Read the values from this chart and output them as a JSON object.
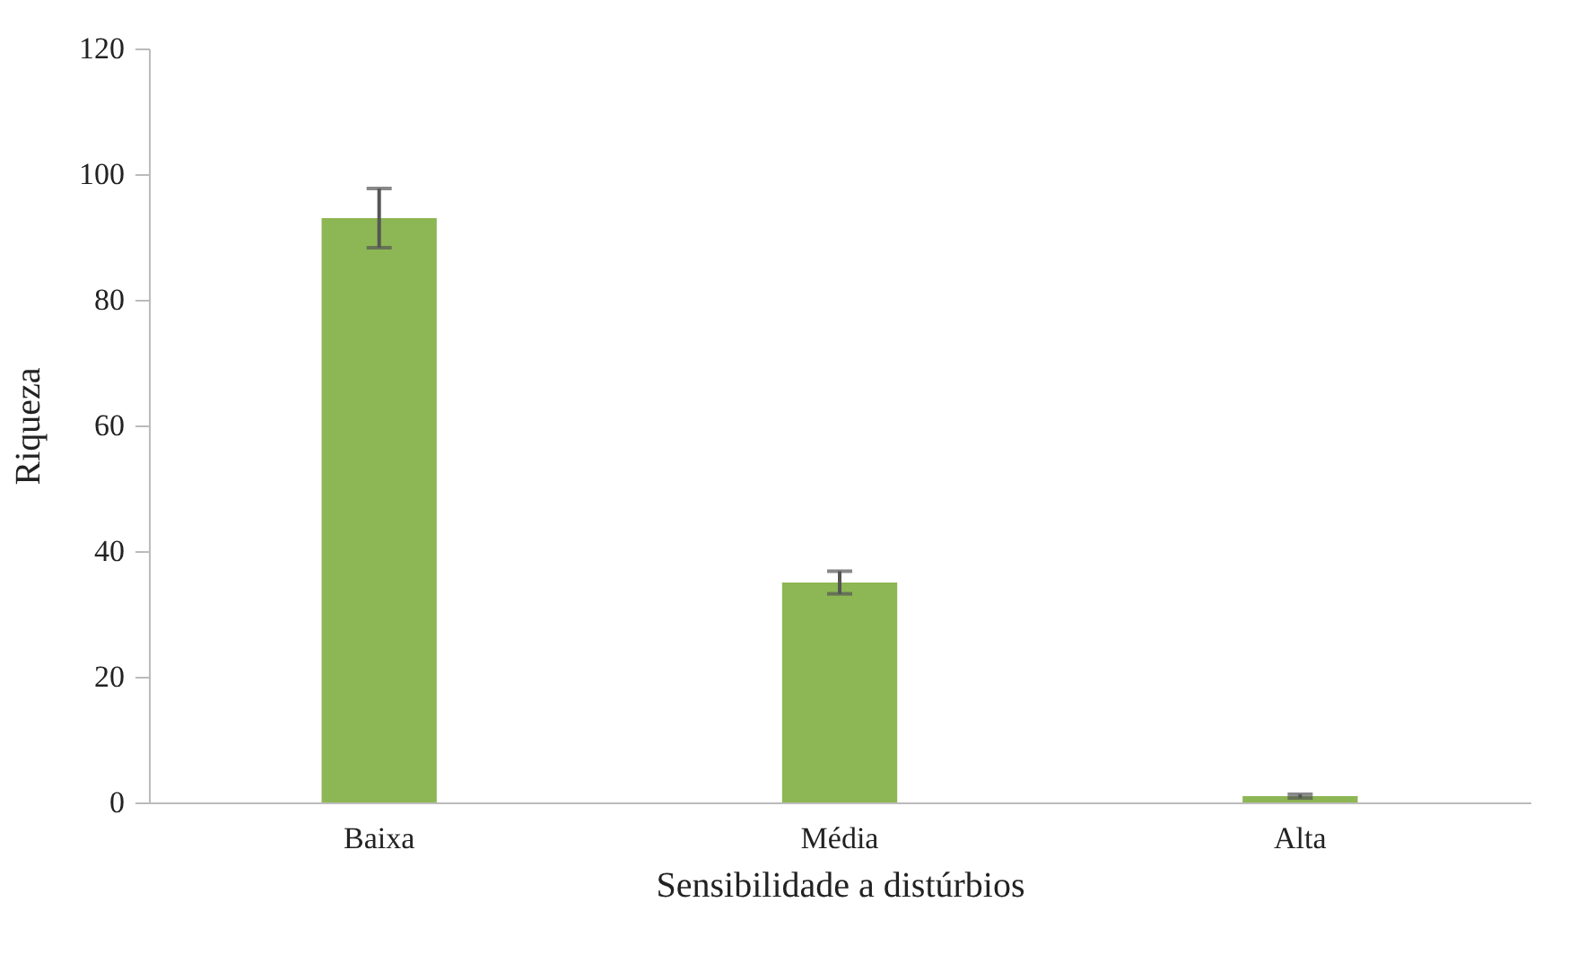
{
  "chart_data": {
    "type": "bar",
    "xlabel": "Sensibilidade a distúrbios",
    "ylabel": "Riqueza",
    "categories": [
      "Baixa",
      "Média",
      "Alta"
    ],
    "values": [
      93,
      35,
      1
    ],
    "errors": [
      4.7,
      1.8,
      0.3
    ],
    "color": "#8db654",
    "ylim": [
      0,
      120
    ],
    "yticks": [
      0,
      20,
      40,
      60,
      80,
      100,
      120
    ],
    "grid": false
  }
}
